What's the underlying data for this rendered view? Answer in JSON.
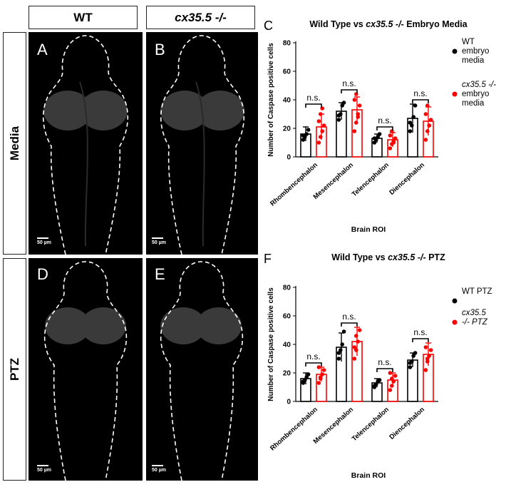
{
  "columns": {
    "wt": "WT",
    "mutant": "cx35.5 -/-"
  },
  "rows": {
    "media": "Media",
    "ptz": "PTZ"
  },
  "panels": {
    "A": "A",
    "B": "B",
    "D": "D",
    "E": "E"
  },
  "scale_bar": "50 µm",
  "colors": {
    "wt": "#000000",
    "mutant": "#ff0000"
  },
  "chart_data": [
    {
      "type": "bar",
      "panel_letter": "C",
      "title_prefix": "Wild Type vs ",
      "title_italic": "cx35.5 -/-",
      "title_suffix": " Embryo Media",
      "xlabel": "Brain ROI",
      "ylabel": "Number of Caspase positive cells",
      "ylim": [
        0,
        80
      ],
      "yticks": [
        "0",
        "20",
        "40",
        "60",
        "80"
      ],
      "categories": [
        "Rhombencephalon",
        "Mesencephalon",
        "Telencephalon",
        "Diencephalon"
      ],
      "significance": [
        "n.s.",
        "n.s.",
        "n.s.",
        "n.s."
      ],
      "legend": [
        {
          "line1": "WT",
          "line2": "embryo",
          "line3": "media"
        },
        {
          "line1": "cx35.5 -/-",
          "line2": "embryo",
          "line3": "media"
        }
      ],
      "series": [
        {
          "values": [
            16,
            32,
            13,
            27
          ],
          "errors": [
            5,
            6,
            3,
            10
          ],
          "points": [
            [
              12,
              14,
              16,
              19,
              15
            ],
            [
              26,
              30,
              36,
              38,
              29
            ],
            [
              10,
              12,
              14,
              16,
              13
            ],
            [
              18,
              22,
              28,
              36,
              24
            ]
          ]
        },
        {
          "values": [
            21,
            33,
            12,
            25
          ],
          "errors": [
            9,
            9,
            5,
            10
          ],
          "points": [
            [
              10,
              14,
              18,
              22,
              25,
              30,
              34
            ],
            [
              18,
              24,
              30,
              36,
              40,
              44,
              28
            ],
            [
              6,
              9,
              11,
              13,
              15,
              18,
              10
            ],
            [
              12,
              18,
              22,
              26,
              30,
              36,
              22
            ]
          ]
        }
      ]
    },
    {
      "type": "bar",
      "panel_letter": "F",
      "title_prefix": "Wild Type vs ",
      "title_italic": "cx35.5 -/-",
      "title_suffix": " PTZ",
      "xlabel": "Brain  ROI",
      "ylabel": "Number of Caspase positive cells",
      "ylim": [
        0,
        80
      ],
      "yticks": [
        "0",
        "20",
        "40",
        "60",
        "80"
      ],
      "categories": [
        "Rhombencephalon",
        "Mesencephalon",
        "Telencephalon",
        "Diencephalon"
      ],
      "significance": [
        "n.s.",
        "n.s.",
        "n.s.",
        "n.s."
      ],
      "legend": [
        {
          "line1": "WT PTZ",
          "line2": "",
          "line3": ""
        },
        {
          "line1": "cx35.5",
          "line2": "-/- PTZ",
          "line3": ""
        }
      ],
      "series": [
        {
          "values": [
            16,
            38,
            13,
            29
          ],
          "errors": [
            4,
            10,
            3,
            5
          ],
          "points": [
            [
              13,
              15,
              17,
              19,
              14
            ],
            [
              30,
              36,
              40,
              49,
              34
            ],
            [
              10,
              12,
              14,
              15,
              11
            ],
            [
              24,
              28,
              32,
              34,
              27
            ]
          ]
        },
        {
          "values": [
            19,
            42,
            15,
            33
          ],
          "errors": [
            5,
            10,
            5,
            8
          ],
          "points": [
            [
              13,
              16,
              19,
              22,
              24,
              17
            ],
            [
              30,
              36,
              42,
              50,
              38,
              46
            ],
            [
              8,
              11,
              14,
              18,
              20,
              16
            ],
            [
              22,
              28,
              32,
              36,
              38,
              30
            ]
          ]
        }
      ]
    }
  ]
}
